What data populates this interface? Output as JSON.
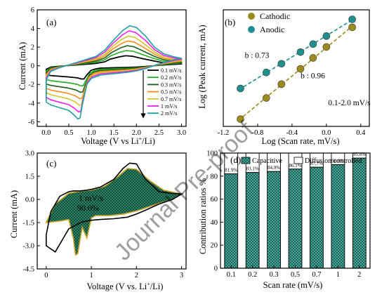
{
  "watermark": "Journal Pre-proof",
  "chart_data": [
    {
      "id": "a",
      "type": "line",
      "panel_label": "(a)",
      "xlabel": "Voltage (V vs Li⁺/Li)",
      "ylabel": "Current (mA)",
      "xlim": [
        -0.2,
        3.1
      ],
      "ylim": [
        -6.5,
        6
      ],
      "xticks": [
        "0.0",
        "0.5",
        "1.0",
        "1.5",
        "2.0",
        "2.5",
        "3.0"
      ],
      "xtick_values": [
        0,
        0.5,
        1,
        1.5,
        2,
        2.5,
        3
      ],
      "yticks": [
        "-6",
        "-4",
        "-2",
        "0",
        "2",
        "4",
        "6"
      ],
      "ytick_values": [
        -6,
        -4,
        -2,
        0,
        2,
        4,
        6
      ],
      "series": [
        {
          "name": "0.1 mV/s",
          "color": "#000000",
          "scale": 0.25
        },
        {
          "name": "0.2 mV/s",
          "color": "#22aa22",
          "scale": 0.38
        },
        {
          "name": "0.3 mV/s",
          "color": "#1a5e1a",
          "scale": 0.5
        },
        {
          "name": "0.5 mV/s",
          "color": "#ff8c1a",
          "scale": 0.62
        },
        {
          "name": "0.7 mV/s",
          "color": "#d4c426",
          "scale": 0.74
        },
        {
          "name": "1 mV/s",
          "color": "#ee22ee",
          "scale": 0.87
        },
        {
          "name": "2 mV/s",
          "color": "#20a0a0",
          "scale": 1.0
        }
      ],
      "curve_shape": {
        "cathodic_x": [
          3.0,
          2.8,
          2.5,
          2.2,
          2.0,
          1.8,
          1.6,
          1.4,
          1.2,
          1.0,
          0.9,
          0.8,
          0.75,
          0.7,
          0.6,
          0.5,
          0.3,
          0.1,
          0.0
        ],
        "cathodic_y": [
          0.8,
          0.6,
          0.2,
          -0.3,
          -0.55,
          -0.7,
          -0.8,
          -0.9,
          -1.0,
          -1.35,
          -2.0,
          -4.2,
          -5.6,
          -5.7,
          -5.2,
          -4.8,
          -4.5,
          -4.2,
          -3.9
        ],
        "anodic_x": [
          0.0,
          0.1,
          0.3,
          0.5,
          0.7,
          0.9,
          1.1,
          1.3,
          1.5,
          1.7,
          1.85,
          2.0,
          2.2,
          2.4,
          2.6,
          2.8,
          3.0
        ],
        "anodic_y": [
          -1.5,
          -0.6,
          -0.2,
          0.1,
          0.4,
          0.7,
          1.0,
          1.7,
          2.8,
          3.8,
          4.3,
          4.1,
          3.2,
          2.0,
          1.3,
          1.0,
          0.8
        ]
      },
      "arrow": true
    },
    {
      "id": "b",
      "type": "scatter",
      "panel_label": "(b)",
      "xlabel": "Log (Scan rate, mV/s)",
      "ylabel": "Log (Peak current, mA)",
      "xlim": [
        -1.2,
        0.5
      ],
      "ylim": [
        -0.72,
        0.88
      ],
      "xticks": [
        "-1.2",
        "-0.8",
        "-0.4",
        "0.0",
        "0.4"
      ],
      "xtick_values": [
        -1.2,
        -0.8,
        -0.4,
        0.0,
        0.4
      ],
      "series": [
        {
          "name": "Cathodic",
          "color": "#9b8a1e",
          "x": [
            -1.0,
            -0.699,
            -0.523,
            -0.301,
            -0.155,
            0.0,
            0.301
          ],
          "y": [
            -0.62,
            -0.33,
            -0.14,
            0.07,
            0.22,
            0.37,
            0.64
          ]
        },
        {
          "name": "Anodic",
          "color": "#1f8f8f",
          "x": [
            -1.0,
            -0.699,
            -0.523,
            -0.301,
            -0.155,
            0.0,
            0.301
          ],
          "y": [
            -0.2,
            0.02,
            0.14,
            0.3,
            0.41,
            0.52,
            0.75
          ]
        }
      ],
      "annotations": [
        {
          "text": "b : 0.73",
          "color": "#1f8f8f",
          "x": -0.95,
          "y": 0.22
        },
        {
          "text": "b : 0.96",
          "color": "#9b8a1e",
          "x": -0.3,
          "y": -0.06
        },
        {
          "text": "0.1-2.0 mV/s",
          "color": "#000000",
          "x": 0.02,
          "y": -0.43
        }
      ]
    },
    {
      "id": "c",
      "type": "area",
      "panel_label": "(c)",
      "xlabel": "Voltage (V vs. Li⁺/Li)",
      "ylabel": "Current (mA)",
      "xlim": [
        -0.2,
        3.1
      ],
      "ylim": [
        -4.5,
        3.0
      ],
      "xticks": [
        "0",
        "1",
        "2",
        "3"
      ],
      "xtick_values": [
        0,
        1,
        2,
        3
      ],
      "yticks": [
        "-4.5",
        "-3.0",
        "-1.5",
        "0.0",
        "1.5",
        "3.0"
      ],
      "ytick_values": [
        -4.5,
        -3.0,
        -1.5,
        0.0,
        1.5,
        3.0
      ],
      "annotation_rate": "1 mV/s",
      "annotation_pct": "90.0%",
      "fill_color": "#2e7d5b",
      "total_curve": {
        "x": [
          0.0,
          0.1,
          0.3,
          0.5,
          0.6,
          0.68,
          0.75,
          0.85,
          0.9,
          1.0,
          1.2,
          1.5,
          1.7,
          1.85,
          2.0,
          2.2,
          2.5,
          2.8,
          3.0,
          2.8,
          2.5,
          2.2,
          2.0,
          1.8,
          1.5,
          1.2,
          1.0,
          0.8,
          0.5,
          0.2,
          0.0
        ],
        "y": [
          -2.3,
          -0.8,
          0.2,
          0.5,
          0.55,
          0.55,
          0.55,
          0.58,
          0.6,
          0.65,
          0.8,
          1.3,
          2.0,
          2.35,
          2.3,
          1.3,
          0.5,
          0.38,
          0.35,
          0.0,
          -0.3,
          -0.7,
          -0.95,
          -1.15,
          -1.25,
          -1.3,
          -1.35,
          -1.45,
          -1.9,
          -3.4,
          -3.0
        ]
      },
      "capacitive_curve": {
        "x": [
          0.0,
          0.2,
          0.5,
          0.8,
          1.0,
          1.3,
          1.6,
          1.8,
          2.0,
          2.3,
          2.6,
          3.0,
          2.8,
          2.5,
          2.2,
          2.0,
          1.7,
          1.4,
          1.1,
          1.0,
          0.9,
          0.8,
          0.75,
          0.7,
          0.65,
          0.6,
          0.5,
          0.3,
          0.0
        ],
        "y": [
          -1.5,
          -0.3,
          0.4,
          0.55,
          0.6,
          0.85,
          1.5,
          2.0,
          1.95,
          1.2,
          0.6,
          0.35,
          0.0,
          -0.25,
          -0.55,
          -0.75,
          -0.95,
          -1.05,
          -1.05,
          -1.2,
          -2.5,
          -1.8,
          -2.6,
          -3.5,
          -3.6,
          -2.5,
          -1.3,
          -1.4,
          -1.5
        ]
      }
    },
    {
      "id": "d",
      "type": "bar",
      "panel_label": "(d)",
      "xlabel": "Scan rate (mV/s)",
      "ylabel": "Contribution ratios %",
      "categories": [
        "0.1",
        "0.2",
        "0.3",
        "0.5",
        "0.7",
        "1",
        "2"
      ],
      "values": [
        81.9,
        83.1,
        84.0,
        86.1,
        87.7,
        90.0,
        95.6
      ],
      "value_labels": [
        "81.9%",
        "83.1%",
        "84.0%",
        "86.1%",
        "87.7%",
        "90.0%",
        "95.6%"
      ],
      "ylim": [
        0,
        100
      ],
      "yticks": [
        "0",
        "20",
        "40",
        "60",
        "80",
        "100"
      ],
      "ytick_values": [
        0,
        20,
        40,
        60,
        80,
        100
      ],
      "legend": [
        "Capacitive",
        "Diffusion controlled"
      ],
      "fill_color": "#2e8b7a"
    }
  ]
}
